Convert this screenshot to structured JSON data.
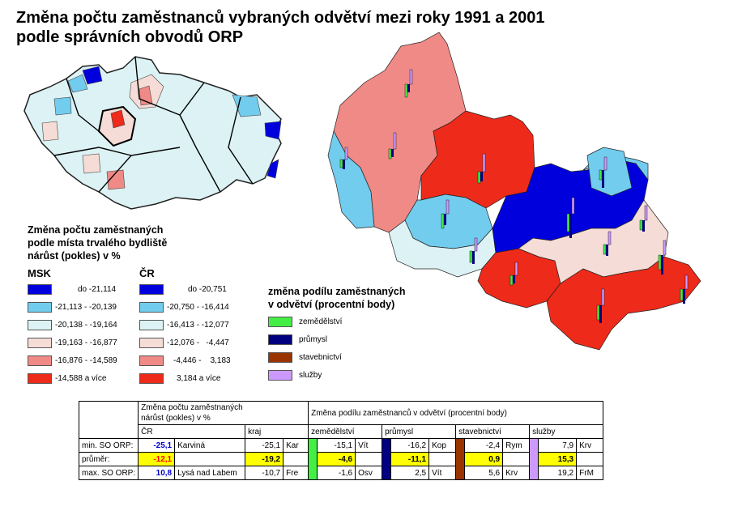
{
  "title": {
    "line1": "Změna počtu zaměstnanců vybraných odvětví mezi roky 1991 a 2001",
    "line2": "podle správních obvodů ORP"
  },
  "legend_change": {
    "title_lines": [
      "Změna počtu zaměstnaných",
      "podle místa trvalého bydliště",
      "nárůst (pokles) v %"
    ],
    "msk_header": "MSK",
    "cr_header": "ČR",
    "classes": [
      {
        "color": "#0000dd",
        "msk": "do -21,114",
        "cr": "do -20,751"
      },
      {
        "color": "#72ccee",
        "msk": "-21,113 - -20,139",
        "cr": "-20,750 - -16,414"
      },
      {
        "color": "#dcf2f4",
        "msk": "-20,138 - -19,164",
        "cr": "-16,413 - -12,077"
      },
      {
        "color": "#f6dcd6",
        "msk": "-19,163 - -16,877",
        "cr": "-12,076 -   -4,447"
      },
      {
        "color": "#f08a86",
        "msk": "-16,876 - -14,589",
        "cr": "-4,446 -    3,183"
      },
      {
        "color": "#ee2a1a",
        "msk": "-14,588 a více",
        "cr": "3,184 a více"
      }
    ]
  },
  "legend_sectors": {
    "title_lines": [
      "změna podílu zaměstnaných",
      "v odvětví (procentní body)"
    ],
    "items": [
      {
        "label": "zemědělství",
        "color": "#44ee44"
      },
      {
        "label": "průmysl",
        "color": "#000080"
      },
      {
        "label": "stavebnictví",
        "color": "#993300"
      },
      {
        "label": "služby",
        "color": "#cc99ff"
      }
    ]
  },
  "table": {
    "header_change": "Změna počtu zaměstnaných",
    "header_change2": "nárůst (pokles) v %",
    "header_sector": "Změna podílu zaměstnanců v odvětví (procentní body)",
    "sub_cr": "ČR",
    "sub_kraj": "kraj",
    "sub_zem": "zemědělství",
    "sub_pru": "průmysl",
    "sub_sta": "stavebnictví",
    "sub_slu": "služby",
    "rows": [
      {
        "label": "min. SO ORP:",
        "cr": "-25,1",
        "cr_name": "Karviná",
        "kraj": "-25,1",
        "kraj_name": "Kar",
        "zem": "-15,1",
        "zem_name": "Vít",
        "pru": "-16,2",
        "pru_name": "Kop",
        "sta": "-2,4",
        "sta_name": "Rym",
        "slu": "7,9",
        "slu_name": "Krv"
      },
      {
        "label": "průměr:",
        "cr": "-12,1",
        "cr_name": "",
        "kraj": "-19,2",
        "kraj_name": "",
        "zem": "-4,6",
        "zem_name": "",
        "pru": "-11,1",
        "pru_name": "",
        "sta": "0,9",
        "sta_name": "",
        "slu": "15,3",
        "slu_name": ""
      },
      {
        "label": "max. SO ORP:",
        "cr": "10,8",
        "cr_name": "Lysá nad Labem",
        "kraj": "-10,7",
        "kraj_name": "Fre",
        "zem": "-1,6",
        "zem_name": "Osv",
        "pru": "2,5",
        "pru_name": "Vít",
        "sta": "5,6",
        "sta_name": "Krv",
        "slu": "19,2",
        "slu_name": "FrM"
      }
    ]
  }
}
